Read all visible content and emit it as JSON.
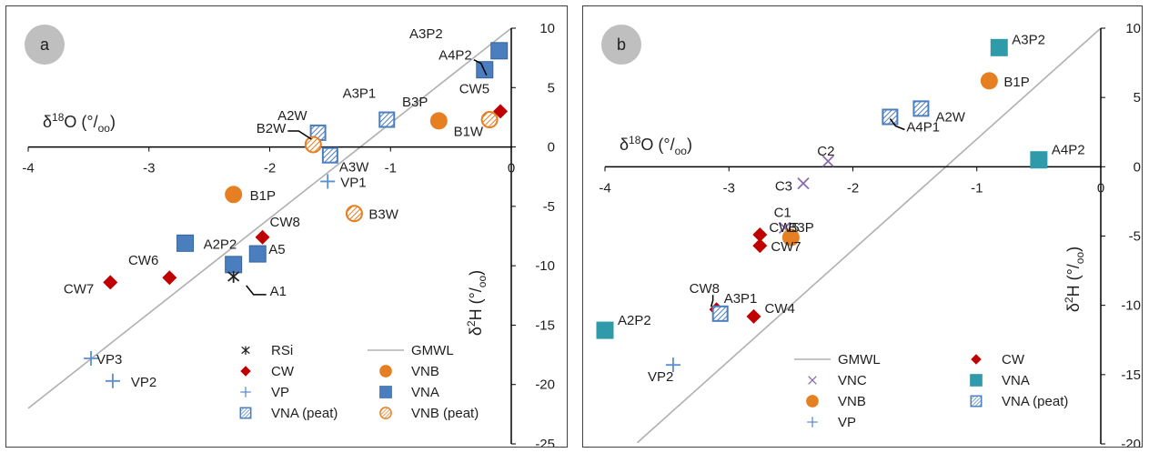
{
  "chart_data": [
    {
      "type": "scatter",
      "panel_label": "a",
      "xlabel": "δ18O (°/oo)",
      "ylabel": "δ2H (°/oo)",
      "xlim": [
        -4,
        0
      ],
      "ylim": [
        -25,
        10
      ],
      "x_ticks": [
        -4,
        -3,
        -2,
        -1,
        0
      ],
      "y_ticks": [
        10,
        5,
        0,
        -5,
        -10,
        -15,
        -20,
        -25
      ],
      "gmwl": {
        "name": "GMWL",
        "slope": 8,
        "intercept": 10
      },
      "legend": [
        "RSi",
        "CW",
        "VP",
        "VNA (peat)",
        "GMWL",
        "VNB",
        "VNA",
        "VNB (peat)"
      ],
      "legend_layout": [
        [
          "RSi",
          "GMWL"
        ],
        [
          "CW",
          "VNB"
        ],
        [
          "VP",
          "VNA"
        ],
        [
          "VNA (peat)",
          "VNB (peat)"
        ]
      ],
      "points": [
        {
          "label": "A3P2",
          "series": "VNA",
          "x": -0.1,
          "y": 8.1
        },
        {
          "label": "A4P2",
          "series": "VNA",
          "x": -0.22,
          "y": 6.5
        },
        {
          "label": "CW5",
          "series": "CW",
          "x": -0.09,
          "y": 3.0
        },
        {
          "label": "B1W",
          "series": "VNB (peat)",
          "x": -0.18,
          "y": 2.3
        },
        {
          "label": "B3P",
          "series": "VNB",
          "x": -0.6,
          "y": 2.2
        },
        {
          "label": "A3P1",
          "series": "VNA (peat)",
          "x": -1.03,
          "y": 2.3
        },
        {
          "label": "A2W",
          "series": "VNA (peat)",
          "x": -1.6,
          "y": 1.2
        },
        {
          "label": "B2W",
          "series": "VNB (peat)",
          "x": -1.64,
          "y": 0.2
        },
        {
          "label": "A3W",
          "series": "VNA (peat)",
          "x": -1.5,
          "y": -0.7
        },
        {
          "label": "VP1",
          "series": "VP",
          "x": -1.52,
          "y": -2.9
        },
        {
          "label": "B1P",
          "series": "VNB",
          "x": -2.3,
          "y": -4.0
        },
        {
          "label": "B3W",
          "series": "VNB (peat)",
          "x": -1.3,
          "y": -5.6
        },
        {
          "label": "CW8",
          "series": "CW",
          "x": -2.06,
          "y": -7.6
        },
        {
          "label": "A2P2",
          "series": "VNA",
          "x": -2.7,
          "y": -8.1
        },
        {
          "label": "A5",
          "series": "VNA",
          "x": -2.1,
          "y": -9.0
        },
        {
          "label": "",
          "series": "VNA",
          "x": -2.3,
          "y": -9.9
        },
        {
          "label": "A1",
          "series": "RSi",
          "x": -2.3,
          "y": -10.9
        },
        {
          "label": "CW6",
          "series": "CW",
          "x": -2.83,
          "y": -11.0
        },
        {
          "label": "CW7",
          "series": "CW",
          "x": -3.32,
          "y": -11.4
        },
        {
          "label": "VP3",
          "series": "VP",
          "x": -3.48,
          "y": -17.8
        },
        {
          "label": "VP2",
          "series": "VP",
          "x": -3.3,
          "y": -19.7
        }
      ]
    },
    {
      "type": "scatter",
      "panel_label": "b",
      "xlabel": "δ18O (°/oo)",
      "ylabel": "δ2H (°/oo)",
      "xlim": [
        -4,
        0
      ],
      "ylim": [
        -20,
        10
      ],
      "x_ticks": [
        -4,
        -3,
        -2,
        -1,
        0
      ],
      "y_ticks": [
        10,
        5,
        0,
        -5,
        -10,
        -15,
        -20
      ],
      "gmwl": {
        "name": "GMWL",
        "slope": 8,
        "intercept": 10
      },
      "legend": [
        "GMWL",
        "VNC",
        "VNB",
        "VP",
        "CW",
        "VNA",
        "VNA (peat)"
      ],
      "legend_layout": [
        [
          "GMWL",
          "CW"
        ],
        [
          "VNC",
          "VNA"
        ],
        [
          "VNB",
          "VNA (peat)"
        ],
        [
          "VP",
          ""
        ]
      ],
      "points": [
        {
          "label": "A3P2",
          "series": "VNA",
          "x": -0.82,
          "y": 8.6
        },
        {
          "label": "B1P",
          "series": "VNB",
          "x": -0.9,
          "y": 6.2
        },
        {
          "label": "A2W",
          "series": "VNA (peat)",
          "x": -1.45,
          "y": 4.2
        },
        {
          "label": "A4P1",
          "series": "VNA (peat)",
          "x": -1.7,
          "y": 3.6
        },
        {
          "label": "A4P2",
          "series": "VNA",
          "x": -0.5,
          "y": 0.5
        },
        {
          "label": "C2",
          "series": "VNC",
          "x": -2.2,
          "y": 0.4
        },
        {
          "label": "C3",
          "series": "VNC",
          "x": -2.4,
          "y": -1.2
        },
        {
          "label": "C1",
          "series": "VNC",
          "x": -2.55,
          "y": -4.4
        },
        {
          "label": "B3P",
          "series": "VNB",
          "x": -2.5,
          "y": -5.1
        },
        {
          "label": "CW5",
          "series": "CW",
          "x": -2.75,
          "y": -4.9
        },
        {
          "label": "CW7",
          "series": "CW",
          "x": -2.75,
          "y": -5.7
        },
        {
          "label": "CW8",
          "series": "CW",
          "x": -3.1,
          "y": -10.3
        },
        {
          "label": "A3P1",
          "series": "VNA (peat)",
          "x": -3.07,
          "y": -10.6
        },
        {
          "label": "CW4",
          "series": "CW",
          "x": -2.8,
          "y": -10.8
        },
        {
          "label": "A2P2",
          "series": "VNA",
          "x": -4.0,
          "y": -11.8
        },
        {
          "label": "VP2",
          "series": "VP",
          "x": -3.45,
          "y": -14.3
        }
      ]
    }
  ],
  "colors": {
    "VNA": "#4a7ebf",
    "VNA_b": "#2f9aaa",
    "VNB": "#e67e22",
    "CW": "#c00000",
    "VP": "#5b8fd1",
    "VNC": "#8a6bb0",
    "RSi": "#222222",
    "GMWL": "#b0b0b0",
    "axis": "#000000"
  },
  "icons": {
    "RSi": "asterisk-marker-icon",
    "CW": "diamond-marker-icon",
    "VP": "plus-marker-icon",
    "VNB": "circle-marker-icon",
    "VNA": "square-marker-icon",
    "VNA (peat)": "hatched-square-marker-icon",
    "VNB (peat)": "hatched-circle-marker-icon",
    "VNC": "x-marker-icon"
  }
}
